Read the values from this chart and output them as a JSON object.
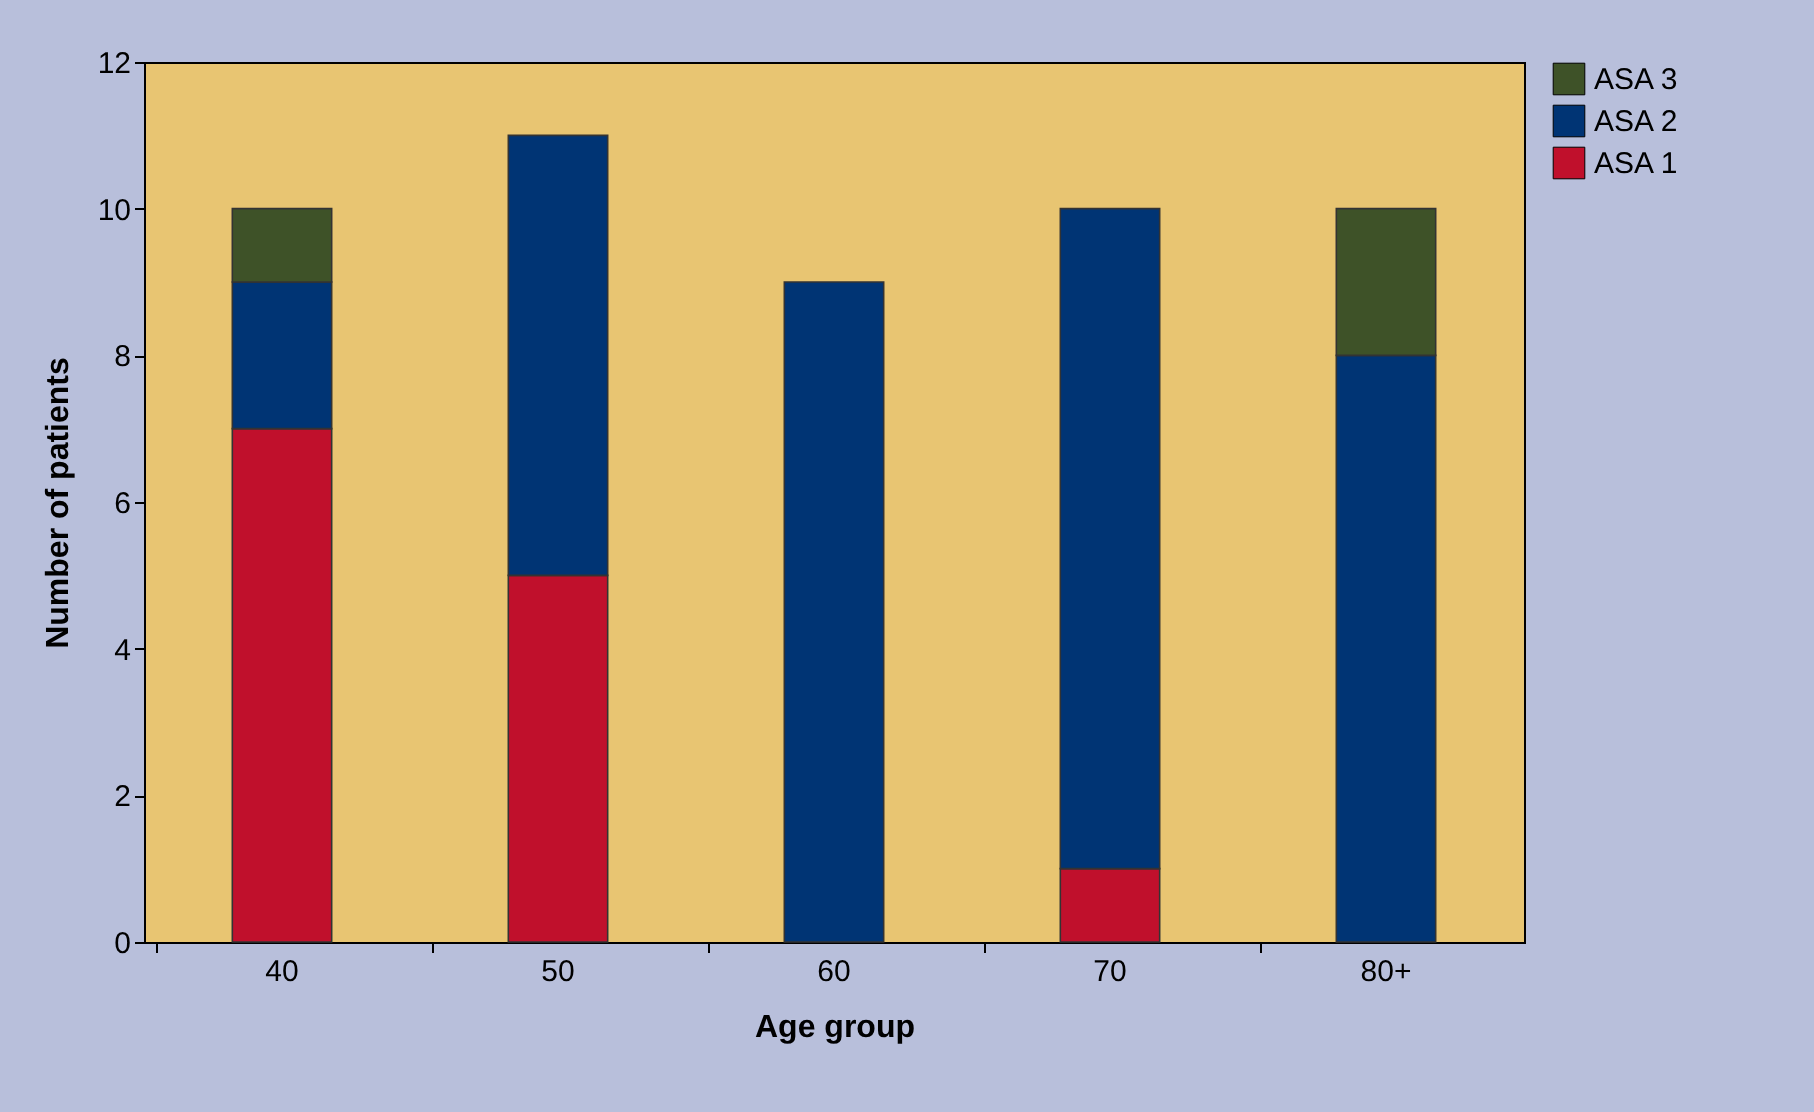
{
  "chart_data": {
    "type": "bar",
    "xlabel": "Age group",
    "ylabel": "Number of patients",
    "categories": [
      "40",
      "50",
      "60",
      "70",
      "80+"
    ],
    "stacked": true,
    "ylim": [
      0,
      12
    ],
    "yticks": [
      0,
      2,
      4,
      6,
      8,
      10,
      12
    ],
    "grid": false,
    "legend": "right",
    "series": [
      {
        "name": "ASA 1",
        "color": "#c0102c",
        "values": [
          7,
          5,
          0,
          1,
          0
        ]
      },
      {
        "name": "ASA 2",
        "color": "#003474",
        "values": [
          2,
          6,
          9,
          9,
          8
        ]
      },
      {
        "name": "ASA 3",
        "color": "#3e5228",
        "values": [
          1,
          0,
          0,
          0,
          2
        ]
      }
    ]
  }
}
